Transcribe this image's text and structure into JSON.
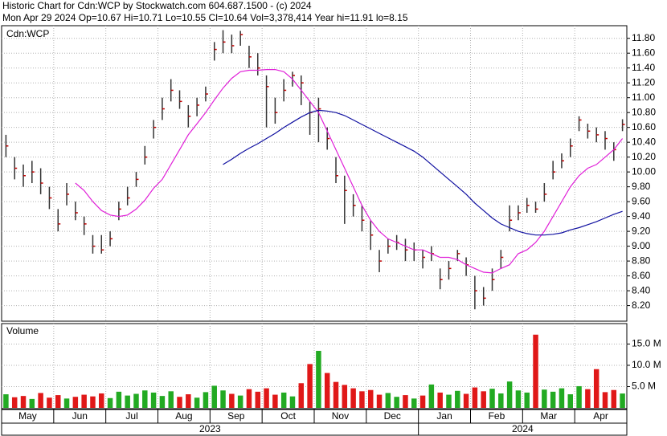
{
  "chart_data": {
    "type": "ohlc",
    "title": "Historic Chart for Cdn:WCP by Stockwatch.com 604.687.1500 - (c) 2024",
    "subtitle": "Mon Apr 29 2024  Op=10.67  Hi=10.71  Lo=10.55  Cl=10.64  Vol=3,378,414  Year hi=11.91  lo=8.15",
    "symbol_label": "Cdn:WCP",
    "volume_label": "Volume",
    "bar_color": "#333333",
    "close_color": "#c00000",
    "volume_colors": {
      "up": "#22aa22",
      "down": "#e01818"
    },
    "grid": true,
    "ylim": [
      7.99,
      11.97
    ],
    "yticks": [
      {
        "value": 8.2,
        "label": "8.20"
      },
      {
        "value": 8.4,
        "label": "8.40"
      },
      {
        "value": 8.6,
        "label": "8.60"
      },
      {
        "value": 8.8,
        "label": "8.80"
      },
      {
        "value": 9.0,
        "label": "9.00"
      },
      {
        "value": 9.2,
        "label": "9.20"
      },
      {
        "value": 9.4,
        "label": "9.40"
      },
      {
        "value": 9.6,
        "label": "9.60"
      },
      {
        "value": 9.8,
        "label": "9.80"
      },
      {
        "value": 10.0,
        "label": "10.00"
      },
      {
        "value": 10.2,
        "label": "10.20"
      },
      {
        "value": 10.4,
        "label": "10.40"
      },
      {
        "value": 10.6,
        "label": "10.60"
      },
      {
        "value": 10.8,
        "label": "10.80"
      },
      {
        "value": 11.0,
        "label": "11.00"
      },
      {
        "value": 11.2,
        "label": "11.20"
      },
      {
        "value": 11.4,
        "label": "11.40"
      },
      {
        "value": 11.6,
        "label": "11.60"
      },
      {
        "value": 11.8,
        "label": "11.80"
      }
    ],
    "y2lim": [
      0,
      19.8
    ],
    "y2ticks": [
      {
        "value": 5,
        "label": "5.0 M"
      },
      {
        "value": 10,
        "label": "10.0 M"
      },
      {
        "value": 15,
        "label": "15.0 M"
      }
    ],
    "years": [
      {
        "label": "2023",
        "months": [
          {
            "label": "May",
            "bars": [
              {
                "h": 10.5,
                "l": 10.2,
                "c": 10.35,
                "v": 3.2
              },
              {
                "h": 10.2,
                "l": 9.9,
                "c": 10.05,
                "v": 2.5
              },
              {
                "h": 10.1,
                "l": 9.8,
                "c": 9.95,
                "v": 2.8
              },
              {
                "h": 10.15,
                "l": 9.85,
                "c": 10.0,
                "v": 2.1
              },
              {
                "h": 10.05,
                "l": 9.7,
                "c": 9.85,
                "v": 3.5
              },
              {
                "h": 9.8,
                "l": 9.5,
                "c": 9.65,
                "v": 2.4
              }
            ]
          },
          {
            "label": "Jun",
            "bars": [
              {
                "h": 9.5,
                "l": 9.2,
                "c": 9.3,
                "v": 3.0
              },
              {
                "h": 9.85,
                "l": 9.55,
                "c": 9.7,
                "v": 2.2
              },
              {
                "h": 9.6,
                "l": 9.35,
                "c": 9.45,
                "v": 2.6
              },
              {
                "h": 9.4,
                "l": 9.15,
                "c": 9.3,
                "v": 3.1
              },
              {
                "h": 9.15,
                "l": 8.9,
                "c": 9.0,
                "v": 2.7
              },
              {
                "h": 9.15,
                "l": 8.9,
                "c": 8.95,
                "v": 3.4
              }
            ]
          },
          {
            "label": "Jul",
            "bars": [
              {
                "h": 9.2,
                "l": 9.0,
                "c": 9.1,
                "v": 2.3
              },
              {
                "h": 9.6,
                "l": 9.35,
                "c": 9.5,
                "v": 3.8
              },
              {
                "h": 9.8,
                "l": 9.55,
                "c": 9.65,
                "v": 2.9
              },
              {
                "h": 10.0,
                "l": 9.8,
                "c": 9.9,
                "v": 3.3
              },
              {
                "h": 10.35,
                "l": 10.1,
                "c": 10.2,
                "v": 4.1
              },
              {
                "h": 10.7,
                "l": 10.45,
                "c": 10.6,
                "v": 3.6
              }
            ]
          },
          {
            "label": "Aug",
            "bars": [
              {
                "h": 11.0,
                "l": 10.7,
                "c": 10.85,
                "v": 2.8
              },
              {
                "h": 11.25,
                "l": 10.95,
                "c": 11.1,
                "v": 3.9
              },
              {
                "h": 11.1,
                "l": 10.85,
                "c": 10.95,
                "v": 2.6
              },
              {
                "h": 10.9,
                "l": 10.6,
                "c": 10.75,
                "v": 3.2
              },
              {
                "h": 11.0,
                "l": 10.75,
                "c": 10.9,
                "v": 2.4
              },
              {
                "h": 11.15,
                "l": 10.95,
                "c": 11.05,
                "v": 3.7
              }
            ]
          },
          {
            "label": "Sep",
            "bars": [
              {
                "h": 11.75,
                "l": 11.5,
                "c": 11.65,
                "v": 5.2
              },
              {
                "h": 11.91,
                "l": 11.6,
                "c": 11.75,
                "v": 4.1
              },
              {
                "h": 11.85,
                "l": 11.6,
                "c": 11.7,
                "v": 3.3
              },
              {
                "h": 11.9,
                "l": 11.7,
                "c": 11.85,
                "v": 2.9
              },
              {
                "h": 11.7,
                "l": 11.4,
                "c": 11.55,
                "v": 4.4
              },
              {
                "h": 11.6,
                "l": 11.3,
                "c": 11.4,
                "v": 3.8
              }
            ]
          },
          {
            "label": "Oct",
            "bars": [
              {
                "h": 11.3,
                "l": 10.6,
                "c": 11.15,
                "v": 4.6
              },
              {
                "h": 11.0,
                "l": 10.65,
                "c": 10.8,
                "v": 3.1
              },
              {
                "h": 11.25,
                "l": 10.95,
                "c": 11.1,
                "v": 3.6
              },
              {
                "h": 11.35,
                "l": 11.15,
                "c": 11.3,
                "v": 2.7
              },
              {
                "h": 11.3,
                "l": 10.9,
                "c": 11.2,
                "v": 5.8
              },
              {
                "h": 10.95,
                "l": 10.5,
                "c": 10.8,
                "v": 10.3
              }
            ]
          },
          {
            "label": "Nov",
            "bars": [
              {
                "h": 11.0,
                "l": 10.4,
                "c": 10.85,
                "v": 13.4
              },
              {
                "h": 10.6,
                "l": 10.3,
                "c": 10.45,
                "v": 8.2
              },
              {
                "h": 10.2,
                "l": 9.85,
                "c": 9.95,
                "v": 6.1
              },
              {
                "h": 9.95,
                "l": 9.3,
                "c": 9.75,
                "v": 5.4
              },
              {
                "h": 9.7,
                "l": 9.4,
                "c": 9.55,
                "v": 4.6
              },
              {
                "h": 9.55,
                "l": 9.2,
                "c": 9.35,
                "v": 3.9
              }
            ]
          },
          {
            "label": "Dec",
            "bars": [
              {
                "h": 9.35,
                "l": 8.95,
                "c": 9.15,
                "v": 4.2
              },
              {
                "h": 8.95,
                "l": 8.65,
                "c": 8.8,
                "v": 3.1
              },
              {
                "h": 9.1,
                "l": 8.9,
                "c": 9.0,
                "v": 3.5
              },
              {
                "h": 9.15,
                "l": 8.95,
                "c": 9.05,
                "v": 2.6
              },
              {
                "h": 9.1,
                "l": 8.8,
                "c": 8.95,
                "v": 3.0
              },
              {
                "h": 9.05,
                "l": 8.8,
                "c": 8.95,
                "v": 2.2
              }
            ]
          }
        ]
      },
      {
        "label": "2024",
        "months": [
          {
            "label": "Jan",
            "bars": [
              {
                "h": 8.95,
                "l": 8.7,
                "c": 8.85,
                "v": 2.9
              },
              {
                "h": 9.0,
                "l": 8.8,
                "c": 8.9,
                "v": 5.5
              },
              {
                "h": 8.7,
                "l": 8.42,
                "c": 8.55,
                "v": 3.6
              },
              {
                "h": 8.8,
                "l": 8.55,
                "c": 8.7,
                "v": 3.1
              },
              {
                "h": 8.95,
                "l": 8.8,
                "c": 8.9,
                "v": 4.0
              },
              {
                "h": 8.85,
                "l": 8.6,
                "c": 8.75,
                "v": 3.3
              }
            ]
          },
          {
            "label": "Feb",
            "bars": [
              {
                "h": 8.6,
                "l": 8.15,
                "c": 8.4,
                "v": 4.8
              },
              {
                "h": 8.45,
                "l": 8.2,
                "c": 8.3,
                "v": 3.9
              },
              {
                "h": 8.7,
                "l": 8.4,
                "c": 8.55,
                "v": 4.5
              },
              {
                "h": 8.95,
                "l": 8.7,
                "c": 8.85,
                "v": 3.4
              },
              {
                "h": 9.55,
                "l": 9.2,
                "c": 9.35,
                "v": 6.2
              },
              {
                "h": 9.55,
                "l": 9.35,
                "c": 9.45,
                "v": 4.1
              }
            ]
          },
          {
            "label": "Mar",
            "bars": [
              {
                "h": 9.65,
                "l": 9.45,
                "c": 9.55,
                "v": 3.6
              },
              {
                "h": 9.6,
                "l": 9.45,
                "c": 9.5,
                "v": 17.2
              },
              {
                "h": 9.85,
                "l": 9.6,
                "c": 9.7,
                "v": 4.3
              },
              {
                "h": 10.15,
                "l": 9.9,
                "c": 10.0,
                "v": 3.8
              },
              {
                "h": 10.25,
                "l": 10.05,
                "c": 10.15,
                "v": 4.6
              },
              {
                "h": 10.45,
                "l": 10.2,
                "c": 10.35,
                "v": 3.2
              }
            ]
          },
          {
            "label": "Apr",
            "bars": [
              {
                "h": 10.75,
                "l": 10.55,
                "c": 10.7,
                "v": 5.1
              },
              {
                "h": 10.65,
                "l": 10.45,
                "c": 10.55,
                "v": 4.4
              },
              {
                "h": 10.6,
                "l": 10.4,
                "c": 10.5,
                "v": 9.1
              },
              {
                "h": 10.55,
                "l": 10.3,
                "c": 10.45,
                "v": 3.7
              },
              {
                "h": 10.4,
                "l": 10.15,
                "c": 10.3,
                "v": 4.2
              },
              {
                "h": 10.71,
                "l": 10.55,
                "c": 10.64,
                "v": 3.378414
              }
            ]
          }
        ]
      }
    ],
    "lines": [
      {
        "color": "#e020d8",
        "values": [
          null,
          null,
          null,
          null,
          null,
          null,
          null,
          null,
          9.85,
          9.75,
          9.6,
          9.48,
          9.42,
          9.4,
          9.42,
          9.5,
          9.62,
          9.78,
          9.9,
          10.1,
          10.3,
          10.5,
          10.65,
          10.8,
          10.97,
          11.13,
          11.26,
          11.35,
          11.37,
          11.37,
          11.38,
          11.38,
          11.35,
          11.25,
          11.1,
          10.95,
          10.8,
          10.55,
          10.3,
          10.05,
          9.8,
          9.55,
          9.35,
          9.2,
          9.1,
          9.05,
          9.0,
          8.95,
          8.95,
          8.9,
          8.85,
          8.85,
          8.82,
          8.75,
          8.7,
          8.65,
          8.64,
          8.7,
          8.75,
          8.9,
          8.95,
          9.05,
          9.2,
          9.4,
          9.6,
          9.8,
          9.95,
          10.05,
          10.1,
          10.2,
          10.3,
          10.45
        ]
      },
      {
        "color": "#1010a0",
        "values": [
          null,
          null,
          null,
          null,
          null,
          null,
          null,
          null,
          null,
          null,
          null,
          null,
          null,
          null,
          null,
          null,
          null,
          null,
          null,
          null,
          null,
          null,
          null,
          null,
          null,
          10.1,
          10.17,
          10.25,
          10.32,
          10.38,
          10.45,
          10.52,
          10.6,
          10.67,
          10.74,
          10.8,
          10.83,
          10.82,
          10.8,
          10.76,
          10.7,
          10.64,
          10.58,
          10.52,
          10.46,
          10.4,
          10.34,
          10.28,
          10.2,
          10.1,
          10.0,
          9.9,
          9.8,
          9.7,
          9.58,
          9.48,
          9.38,
          9.3,
          9.25,
          9.2,
          9.17,
          9.15,
          9.15,
          9.16,
          9.18,
          9.22,
          9.25,
          9.29,
          9.33,
          9.38,
          9.43,
          9.47
        ]
      }
    ]
  }
}
